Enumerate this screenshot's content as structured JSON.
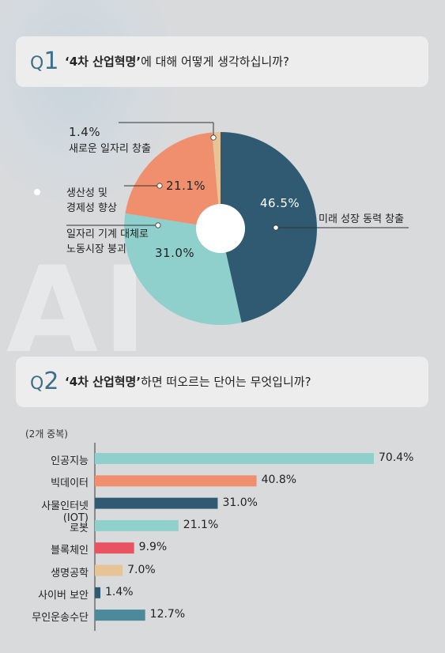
{
  "q1": {
    "label_prefix": "Q",
    "number": "1",
    "quote_term": "‘4차 산업혁명’",
    "question_rest": "에 대해 어떻게 생각하십니까?"
  },
  "q2": {
    "label_prefix": "Q",
    "number": "2",
    "quote_term": "‘4차 산업혁명’",
    "question_rest": "하면 떠오르는 단어는 무엇입니까?"
  },
  "watermark": "AI",
  "pie_labels": {
    "new_jobs": "1.4%",
    "new_jobs_desc": "새로운 일자리 창출",
    "productivity_line1": "생산성 및",
    "productivity_line2": "경제성 향상",
    "productivity_pct": "21.1%",
    "replace_line1": "일자리 기계 대체로",
    "replace_line2": "노동시장 붕괴",
    "replace_pct": "31.0%",
    "growth_pct": "46.5%",
    "growth_desc": "미래 성장 동력 창출"
  },
  "bar_note": "(2개 중복)",
  "chart_data": [
    {
      "type": "pie",
      "title": "‘4차 산업혁명’에 대해 어떻게 생각하십니까?",
      "categories": [
        "미래 성장 동력 창출",
        "일자리 기계 대체로 노동시장 붕괴",
        "생산성 및 경제성 향상",
        "새로운 일자리 창출"
      ],
      "values": [
        46.5,
        31.0,
        21.1,
        1.4
      ],
      "unit": "%",
      "colors": [
        "#2f5a72",
        "#8fd0cd",
        "#f08f6e",
        "#e6c495"
      ],
      "donut_hole": true
    },
    {
      "type": "bar",
      "orientation": "horizontal",
      "title": "‘4차 산업혁명’하면 떠오르는 단어는 무엇입니까?",
      "categories": [
        "인공지능",
        "빅데이터",
        "사물인터넷(IOT)",
        "로봇",
        "블록체인",
        "생명공학",
        "사이버 보안",
        "무인운송수단"
      ],
      "values": [
        70.4,
        40.8,
        31.0,
        21.1,
        9.9,
        7.0,
        1.4,
        12.7
      ],
      "labels": [
        "70.4%",
        "40.8%",
        "31.0%",
        "21.1%",
        "9.9%",
        "7.0%",
        "1.4%",
        "12.7%"
      ],
      "colors": [
        "#8fd0cd",
        "#f08f6e",
        "#2f5a72",
        "#8fd0cd",
        "#e85263",
        "#e6c495",
        "#2f5a72",
        "#4a8a9a"
      ],
      "unit": "%",
      "xlim": [
        0,
        70.4
      ],
      "grid": false
    }
  ]
}
